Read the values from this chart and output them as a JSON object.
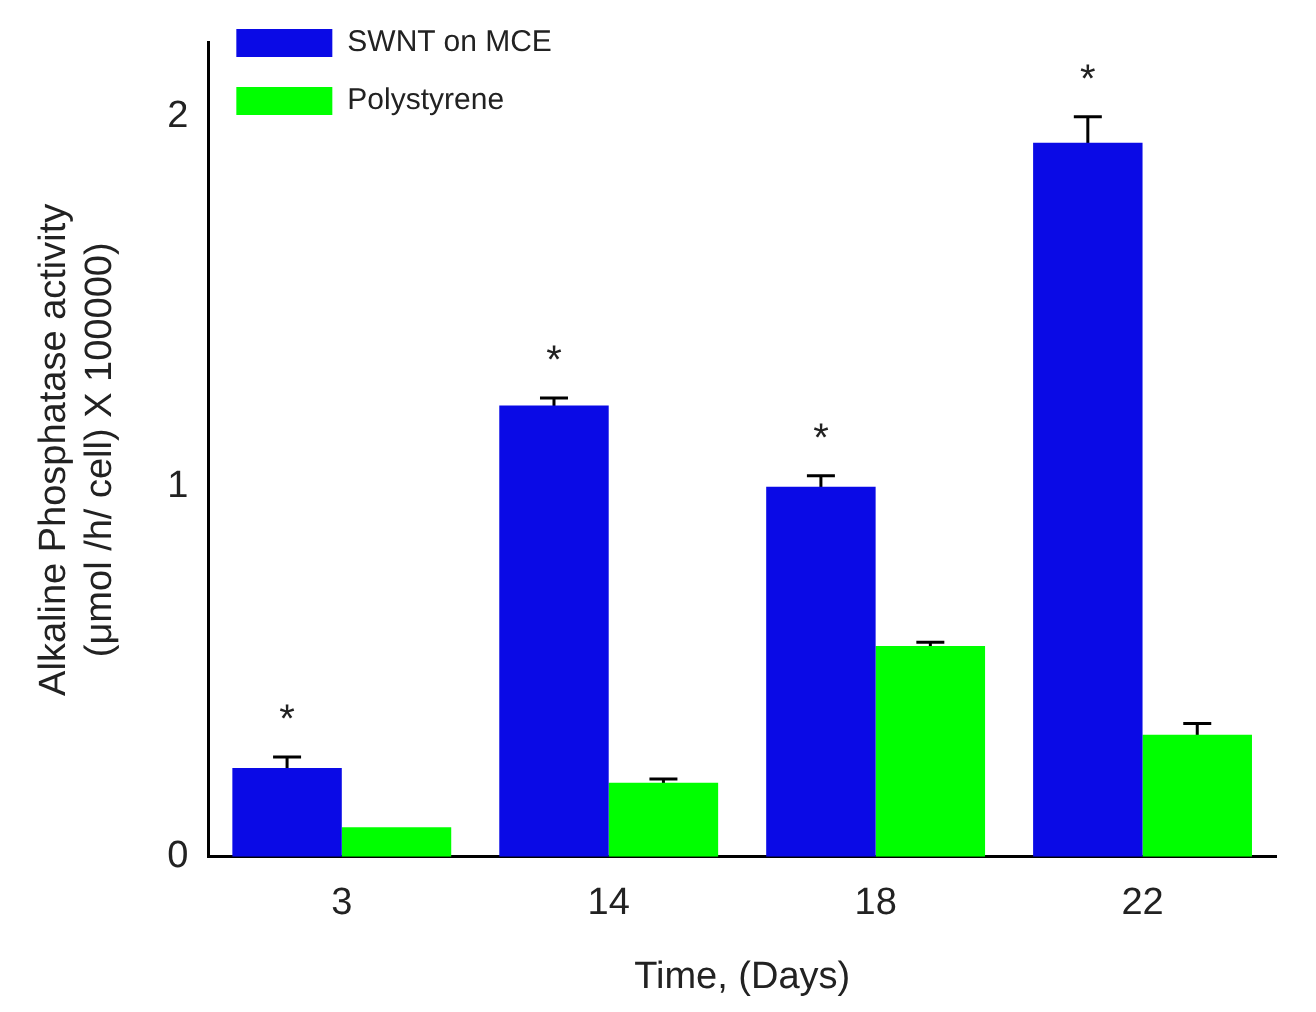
{
  "chart_data": {
    "type": "bar",
    "xlabel": "Time, (Days)",
    "ylabel": "Alkaline Phosphatase activity\n(μmol /h/ cell) X 100000)",
    "categories": [
      "3",
      "14",
      "18",
      "22"
    ],
    "series": [
      {
        "name": "SWNT on MCE",
        "color": "#0a0ae6",
        "values": [
          0.24,
          1.22,
          1.0,
          1.93
        ],
        "errors": [
          0.03,
          0.02,
          0.03,
          0.07
        ]
      },
      {
        "name": "Polystyrene",
        "color": "#00ff00",
        "values": [
          0.08,
          0.2,
          0.57,
          0.33
        ],
        "errors": [
          null,
          0.01,
          0.01,
          0.03
        ]
      }
    ],
    "ylim": [
      0,
      2.2
    ],
    "yticks": [
      0,
      1,
      2
    ],
    "grid": false,
    "legend": "top left",
    "annotations": [
      {
        "text": "*",
        "x": "3",
        "y": 0.24
      },
      {
        "text": "*",
        "x": "14",
        "y": 1.22
      },
      {
        "text": "*",
        "x": "18",
        "y": 1.0
      },
      {
        "text": "*",
        "x": "22",
        "y": 1.93
      }
    ]
  }
}
